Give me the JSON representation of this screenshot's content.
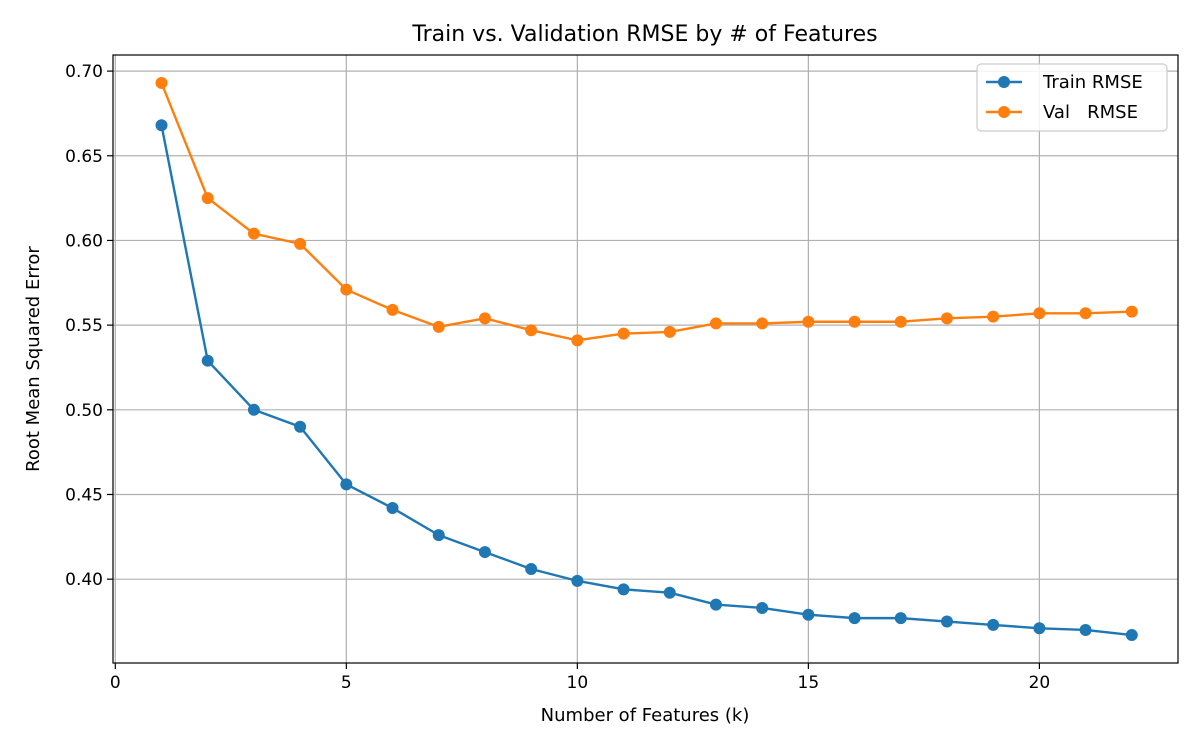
{
  "chart_data": {
    "type": "line",
    "title": "Train vs. Validation RMSE by # of Features",
    "xlabel": "Number of Features (k)",
    "ylabel": "Root Mean Squared Error",
    "xlim": [
      -0.05,
      23
    ],
    "ylim": [
      0.3505,
      0.7095
    ],
    "xticks": [
      0,
      5,
      10,
      15,
      20
    ],
    "yticks": [
      0.4,
      0.45,
      0.5,
      0.55,
      0.6,
      0.65,
      0.7
    ],
    "ytick_labels": [
      "0.40",
      "0.45",
      "0.50",
      "0.55",
      "0.60",
      "0.65",
      "0.70"
    ],
    "grid": true,
    "legend": "top-right",
    "x": [
      1,
      2,
      3,
      4,
      5,
      6,
      7,
      8,
      9,
      10,
      11,
      12,
      13,
      14,
      15,
      16,
      17,
      18,
      19,
      20,
      21,
      22
    ],
    "series": [
      {
        "name": "Train RMSE",
        "color": "#1f77b4",
        "values": [
          0.668,
          0.529,
          0.5,
          0.49,
          0.456,
          0.442,
          0.426,
          0.416,
          0.406,
          0.399,
          0.394,
          0.392,
          0.385,
          0.383,
          0.379,
          0.377,
          0.377,
          0.375,
          0.373,
          0.371,
          0.37,
          0.367
        ]
      },
      {
        "name": "Val   RMSE",
        "color": "#ff7f0e",
        "values": [
          0.693,
          0.625,
          0.604,
          0.598,
          0.571,
          0.559,
          0.549,
          0.554,
          0.547,
          0.541,
          0.545,
          0.546,
          0.551,
          0.551,
          0.552,
          0.552,
          0.552,
          0.554,
          0.555,
          0.557,
          0.557,
          0.558
        ]
      }
    ]
  }
}
